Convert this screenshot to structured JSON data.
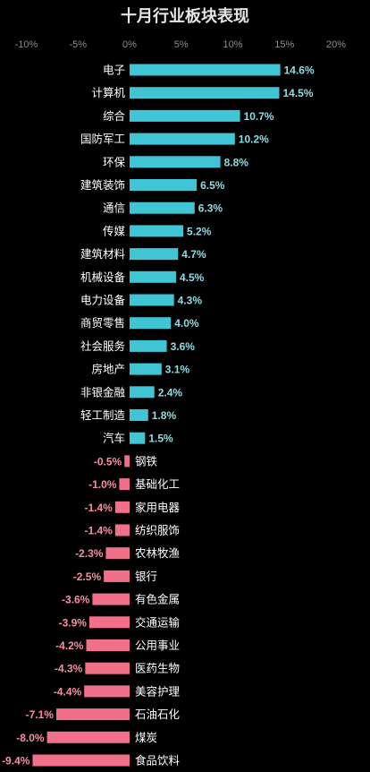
{
  "chart_data": {
    "type": "bar",
    "orientation": "horizontal",
    "title": "十月行业板块表现",
    "xlim": [
      -10,
      20
    ],
    "xticks": [
      -10,
      -5,
      0,
      5,
      10,
      15,
      20
    ],
    "xtick_labels": [
      "-10%",
      "-5%",
      "0%",
      "5%",
      "10%",
      "15%",
      "20%"
    ],
    "categories": [
      "电子",
      "计算机",
      "综合",
      "国防军工",
      "环保",
      "建筑装饰",
      "通信",
      "传媒",
      "建筑材料",
      "机械设备",
      "电力设备",
      "商贸零售",
      "社会服务",
      "房地产",
      "非银金融",
      "轻工制造",
      "汽车",
      "钢铁",
      "基础化工",
      "家用电器",
      "纺织服饰",
      "农林牧渔",
      "银行",
      "有色金属",
      "交通运输",
      "公用事业",
      "医药生物",
      "美容护理",
      "石油石化",
      "煤炭",
      "食品饮料"
    ],
    "values": [
      14.6,
      14.5,
      10.7,
      10.2,
      8.8,
      6.5,
      6.3,
      5.2,
      4.7,
      4.5,
      4.3,
      4.0,
      3.6,
      3.1,
      2.4,
      1.8,
      1.5,
      -0.5,
      -1.0,
      -1.4,
      -1.4,
      -2.3,
      -2.5,
      -3.6,
      -3.9,
      -4.2,
      -4.3,
      -4.4,
      -7.1,
      -8.0,
      -9.4
    ],
    "value_labels": [
      "14.6%",
      "14.5%",
      "10.7%",
      "10.2%",
      "8.8%",
      "6.5%",
      "6.3%",
      "5.2%",
      "4.7%",
      "4.5%",
      "4.3%",
      "4.0%",
      "3.6%",
      "3.1%",
      "2.4%",
      "1.8%",
      "1.5%",
      "-0.5%",
      "-1.0%",
      "-1.4%",
      "-1.4%",
      "-2.3%",
      "-2.5%",
      "-3.6%",
      "-3.9%",
      "-4.2%",
      "-4.3%",
      "-4.4%",
      "-7.1%",
      "-8.0%",
      "-9.4%"
    ],
    "grid": false,
    "legend": "none"
  },
  "colors": {
    "background": "#000000",
    "title": "#e6e6e6",
    "tick_text": "#8c8c8c",
    "category_text": "#ffffff",
    "positive_bar": "#3fc5d3",
    "negative_bar": "#f0708a",
    "positive_label": "#8fdbe6",
    "negative_label": "#f490a2"
  }
}
